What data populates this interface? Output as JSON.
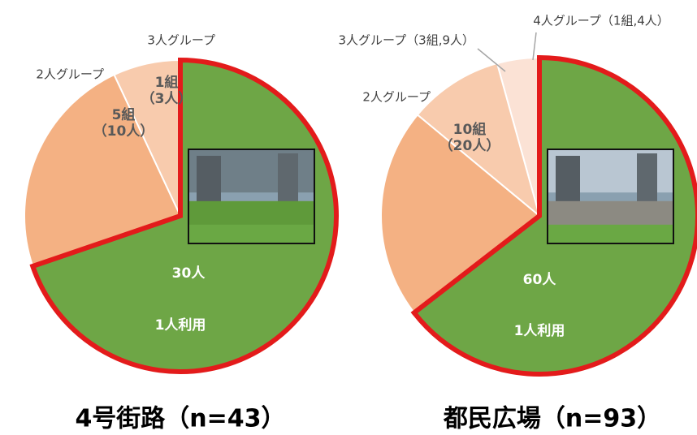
{
  "chart_data": [
    {
      "type": "pie",
      "title": "4号街路（n=43）",
      "categories": [
        "1人利用",
        "2人グループ",
        "3人グループ"
      ],
      "values": [
        30,
        10,
        3
      ],
      "value_labels": [
        "30人",
        "5組\n（10人）",
        "1組\n（3人）"
      ],
      "colors": [
        "#6ea646",
        "#f4b183",
        "#f8cbad"
      ]
    },
    {
      "type": "pie",
      "title": "都民広場（n=93）",
      "categories": [
        "1人利用",
        "2人グループ",
        "3人グループ（3組,9人）",
        "4人グループ（1組,4人）"
      ],
      "values": [
        60,
        20,
        9,
        4
      ],
      "value_labels": [
        "60人",
        "10組\n（20人）",
        null,
        null
      ],
      "colors": [
        "#6ea646",
        "#f4b183",
        "#f8cbad",
        "#fbe2d5"
      ]
    }
  ]
}
